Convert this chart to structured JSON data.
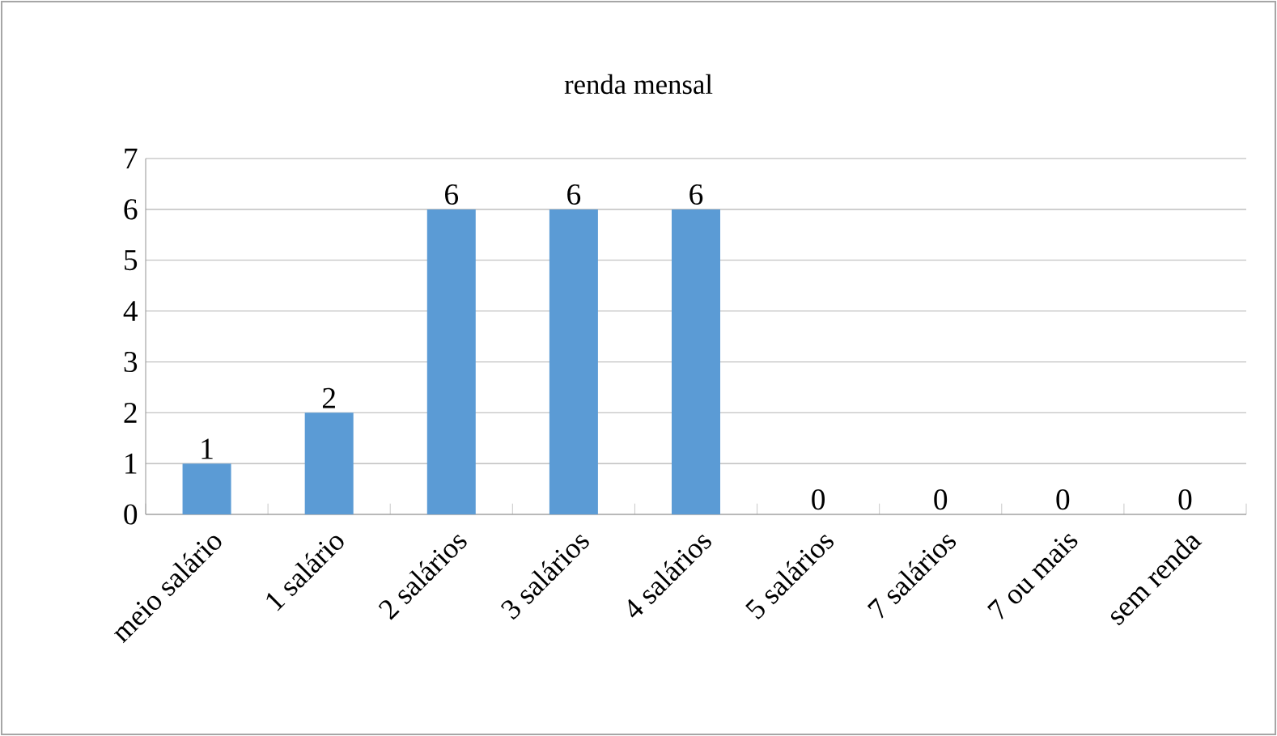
{
  "chart_data": {
    "type": "bar",
    "title": "renda mensal",
    "categories": [
      "meio salário",
      "1 salário",
      "2 salários",
      "3 salários",
      "4 salários",
      "5 salários",
      "7 salários",
      "7 ou mais",
      "sem renda"
    ],
    "values": [
      1,
      2,
      6,
      6,
      6,
      0,
      0,
      0,
      0
    ],
    "color": "#5b9bd5",
    "ylim": [
      0,
      7
    ],
    "yticks": [
      0,
      1,
      2,
      3,
      4,
      5,
      6,
      7
    ],
    "grid": "y",
    "data_labels": true
  }
}
